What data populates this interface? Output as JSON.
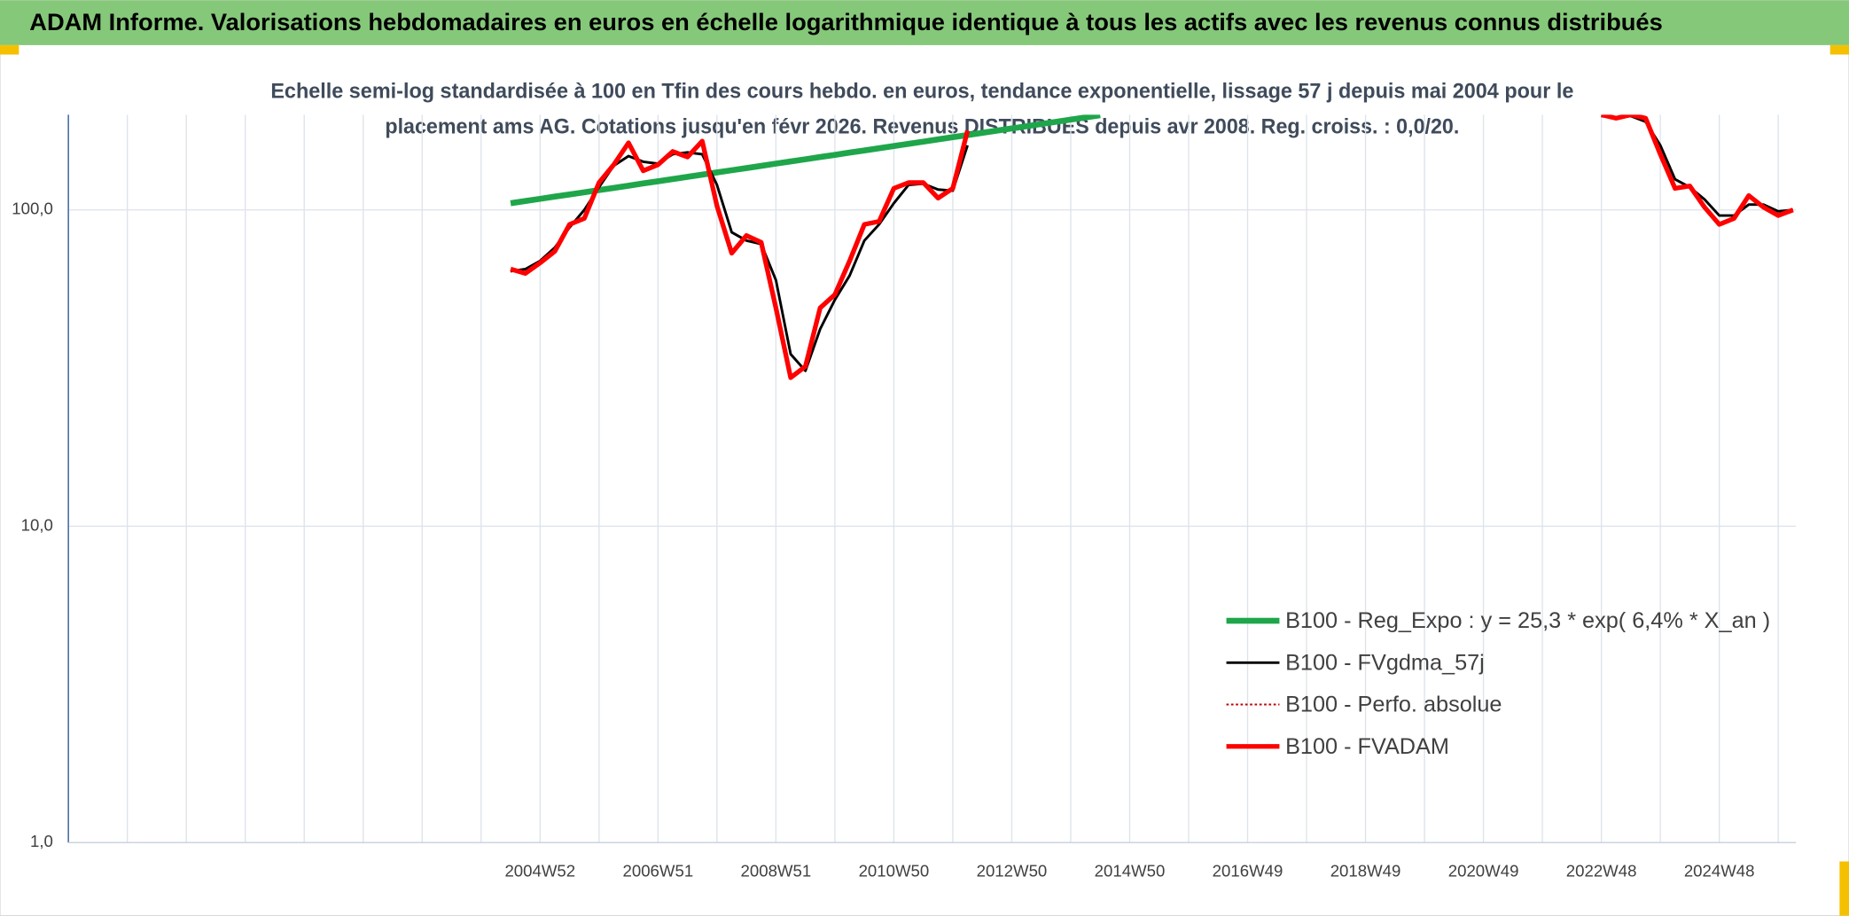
{
  "chart_data": {
    "type": "line",
    "title": "ADAM Informe. Valorisations hebdomadaires en euros en échelle logarithmique identique à tous les actifs avec les revenus connus distribués",
    "subtitle": [
      "Echelle semi-log standardisée à 100 en Tfin des cours hebdo. en euros, tendance exponentielle, lissage 57 j depuis mai 2004 pour le",
      "placement ams AG. Cotations jusqu'en févr 2026. Revenus DISTRIBUES depuis avr 2008. Reg. croiss. : 0,0/20."
    ],
    "log_scale": true,
    "grid": true,
    "legend_position": "right",
    "ylim": [
      1,
      200
    ],
    "yticks": [
      {
        "value": 1,
        "label": "1,0"
      },
      {
        "value": 10,
        "label": "10,0"
      },
      {
        "value": 100,
        "label": "100,0"
      }
    ],
    "categories": [
      null,
      null,
      null,
      null,
      null,
      null,
      null,
      null,
      null,
      null,
      null,
      null,
      null,
      null,
      null,
      null,
      null,
      null,
      null,
      null,
      null,
      null,
      null,
      null,
      null,
      null,
      null,
      null,
      null,
      null,
      null,
      null,
      "2004W52",
      null,
      null,
      null,
      null,
      null,
      null,
      null,
      "2006W51",
      null,
      null,
      null,
      null,
      null,
      null,
      null,
      "2008W51",
      null,
      null,
      null,
      null,
      null,
      null,
      null,
      "2010W50",
      null,
      null,
      null,
      null,
      null,
      null,
      null,
      "2012W50",
      null,
      null,
      null,
      null,
      null,
      null,
      null,
      "2014W50",
      null,
      null,
      null,
      null,
      null,
      null,
      null,
      "2016W49",
      null,
      null,
      null,
      null,
      null,
      null,
      null,
      "2018W49",
      null,
      null,
      null,
      null,
      null,
      null,
      null,
      "2020W49",
      null,
      null,
      null,
      null,
      null,
      null,
      null,
      "2022W48",
      null,
      null,
      null,
      null,
      null,
      null,
      null,
      "2024W48",
      null,
      null,
      null,
      null,
      null
    ],
    "series": [
      {
        "name": "B100 - Reg_Expo : y = 25,3 * exp( 6,4% *  X_an )",
        "color": "#1fa64a",
        "dash": "solid",
        "values": [
          null,
          null,
          null,
          null,
          null,
          null,
          null,
          null,
          null,
          null,
          null,
          null,
          null,
          null,
          null,
          null,
          null,
          null,
          null,
          null,
          null,
          null,
          null,
          null,
          null,
          null,
          null,
          null,
          null,
          null,
          105.0,
          106.7,
          108.4,
          110.2,
          111.9,
          113.7,
          115.6,
          117.4,
          119.3,
          121.3,
          123.2,
          125.2,
          127.2,
          129.3,
          131.4,
          133.5,
          135.6,
          137.8,
          140.1,
          142.3,
          144.6,
          147.0,
          149.3,
          151.8,
          154.2,
          156.7,
          159.2,
          161.8,
          164.4,
          167.1,
          169.8,
          172.5,
          175.3,
          178.1,
          181.0,
          183.9,
          186.9,
          189.9,
          193.0,
          196.1,
          199.3,
          null,
          null,
          null,
          null,
          null,
          null,
          null,
          null,
          null,
          null,
          null,
          null,
          null,
          null,
          null,
          null,
          null,
          null,
          null,
          null,
          null,
          null,
          null,
          null,
          null,
          null,
          null,
          null,
          null,
          null,
          null,
          null,
          null,
          null,
          null,
          null,
          null,
          null,
          null,
          null,
          null,
          null,
          null,
          null,
          null,
          null,
          null
        ]
      },
      {
        "name": "B100 - FVgdma_57j",
        "color": "#000000",
        "dash": "solid",
        "values": [
          null,
          null,
          null,
          null,
          null,
          null,
          null,
          null,
          null,
          null,
          null,
          null,
          null,
          null,
          null,
          null,
          null,
          null,
          null,
          null,
          null,
          null,
          null,
          null,
          null,
          null,
          null,
          null,
          null,
          null,
          64,
          65,
          69,
          76,
          88,
          100,
          118,
          138,
          148,
          142,
          140,
          150,
          152,
          150,
          120,
          85,
          80,
          78,
          60,
          35,
          31,
          42,
          52,
          62,
          80,
          90,
          105,
          120,
          121,
          116,
          115,
          160,
          null,
          null,
          null,
          null,
          null,
          null,
          null,
          null,
          null,
          null,
          null,
          null,
          null,
          null,
          null,
          null,
          null,
          null,
          null,
          null,
          null,
          null,
          null,
          null,
          null,
          null,
          null,
          null,
          null,
          null,
          null,
          null,
          null,
          null,
          null,
          null,
          null,
          null,
          null,
          null,
          null,
          null,
          198,
          196,
          198,
          190,
          160,
          125,
          118,
          108,
          96,
          96,
          104,
          104,
          99,
          100
        ]
      },
      {
        "name": "B100 - Perfo. absolue",
        "color": "#c00000",
        "dash": "dotted",
        "values": [
          null,
          null,
          null,
          null,
          null,
          null,
          null,
          null,
          null,
          null,
          null,
          null,
          null,
          null,
          null,
          null,
          null,
          null,
          null,
          null,
          null,
          null,
          null,
          null,
          null,
          null,
          null,
          null,
          null,
          null,
          null,
          null,
          null,
          null,
          null,
          null,
          null,
          null,
          null,
          null,
          null,
          null,
          null,
          null,
          null,
          null,
          null,
          null,
          null,
          null,
          null,
          null,
          null,
          null,
          null,
          null,
          null,
          null,
          null,
          null,
          null,
          null,
          null,
          null,
          null,
          null,
          null,
          null,
          null,
          null,
          null,
          null,
          null,
          null,
          null,
          null,
          null,
          null,
          null,
          null,
          null,
          null,
          null,
          null,
          null,
          null,
          null,
          null,
          null,
          null,
          null,
          null,
          null,
          null,
          null,
          null,
          null,
          null,
          null,
          null,
          null,
          null,
          null,
          null,
          null,
          null,
          null,
          null,
          null,
          null,
          null,
          null,
          null,
          null,
          null,
          null,
          null,
          null
        ]
      },
      {
        "name": "B100 - FVADAM",
        "color": "#ff0000",
        "dash": "solid",
        "values": [
          null,
          null,
          null,
          null,
          null,
          null,
          null,
          null,
          null,
          null,
          null,
          null,
          null,
          null,
          null,
          null,
          null,
          null,
          null,
          null,
          null,
          null,
          null,
          null,
          null,
          null,
          null,
          null,
          null,
          null,
          65,
          63,
          68,
          74,
          90,
          94,
          122,
          139,
          163,
          133,
          139,
          153,
          147,
          165,
          103,
          73,
          83,
          79,
          49,
          29.5,
          32,
          49,
          54,
          69,
          90,
          92,
          117,
          122,
          122,
          109,
          117,
          178,
          null,
          null,
          null,
          null,
          null,
          null,
          null,
          null,
          null,
          null,
          null,
          null,
          null,
          null,
          null,
          null,
          null,
          null,
          null,
          null,
          null,
          null,
          null,
          null,
          null,
          null,
          null,
          null,
          null,
          null,
          null,
          null,
          null,
          null,
          null,
          null,
          null,
          null,
          null,
          null,
          null,
          null,
          200,
          195,
          200,
          195,
          150,
          117,
          119,
          102,
          90,
          94,
          111,
          102,
          96,
          100
        ]
      }
    ]
  }
}
